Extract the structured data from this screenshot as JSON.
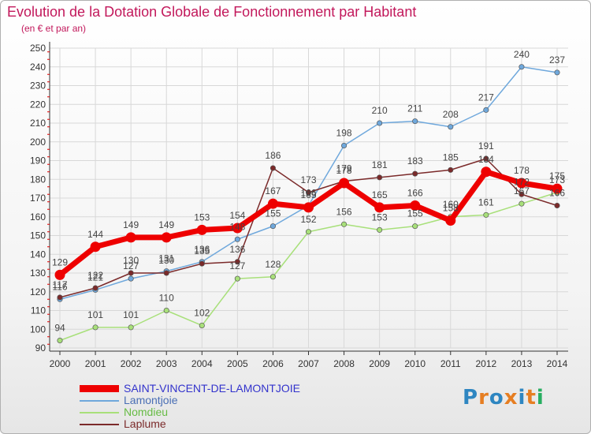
{
  "header": {
    "title": "Evolution de la Dotation Globale de Fonctionnement par Habitant",
    "subtitle": "(en € et par an)"
  },
  "logo": {
    "text": "Proxiti",
    "letter_colors": [
      "#2e86c1",
      "#e67e22",
      "#2e86c1",
      "#e67e22",
      "#2e86c1",
      "#e67e22",
      "#27ae60"
    ]
  },
  "colors": {
    "title": "#c2185b",
    "axis_tick_red": "#e00000",
    "grid": "#d8d8d8"
  },
  "chart_data": {
    "type": "line",
    "title": "Evolution de la Dotation Globale de Fonctionnement par Habitant",
    "subtitle": "(en € et par an)",
    "xlabel": "",
    "ylabel": "",
    "x": [
      "2000",
      "2001",
      "2002",
      "2003",
      "2004",
      "2005",
      "2006",
      "2007",
      "2008",
      "2009",
      "2010",
      "2011",
      "2012",
      "2013",
      "2014"
    ],
    "ylim": [
      90,
      250
    ],
    "yticks": [
      90,
      100,
      110,
      120,
      130,
      140,
      150,
      160,
      170,
      180,
      190,
      200,
      210,
      220,
      230,
      240,
      250
    ],
    "grid": true,
    "legend_position": "bottom-left",
    "series": [
      {
        "name": "SAINT-VINCENT-DE-LAMONTJOIE",
        "color": "#ee0000",
        "label_color": "#3333cc",
        "values": [
          129,
          144,
          149,
          149,
          153,
          154,
          167,
          165,
          178,
          165,
          166,
          158,
          184,
          178,
          175
        ]
      },
      {
        "name": "Lamontjoie",
        "color": "#6fa8dc",
        "label_color": "#4a6fb5",
        "values": [
          116,
          121,
          127,
          131,
          136,
          148,
          155,
          166,
          198,
          210,
          211,
          208,
          217,
          240,
          237
        ]
      },
      {
        "name": "Nomdieu",
        "color": "#a8e07a",
        "label_color": "#66bb44",
        "values": [
          94,
          101,
          101,
          110,
          102,
          127,
          128,
          152,
          156,
          153,
          155,
          160,
          161,
          167,
          173
        ]
      },
      {
        "name": "Laplume",
        "color": "#7b2a2a",
        "label_color": "#7b2a2a",
        "values": [
          117,
          122,
          130,
          130,
          135,
          136,
          186,
          173,
          179,
          181,
          183,
          185,
          191,
          172,
          166
        ]
      }
    ]
  }
}
